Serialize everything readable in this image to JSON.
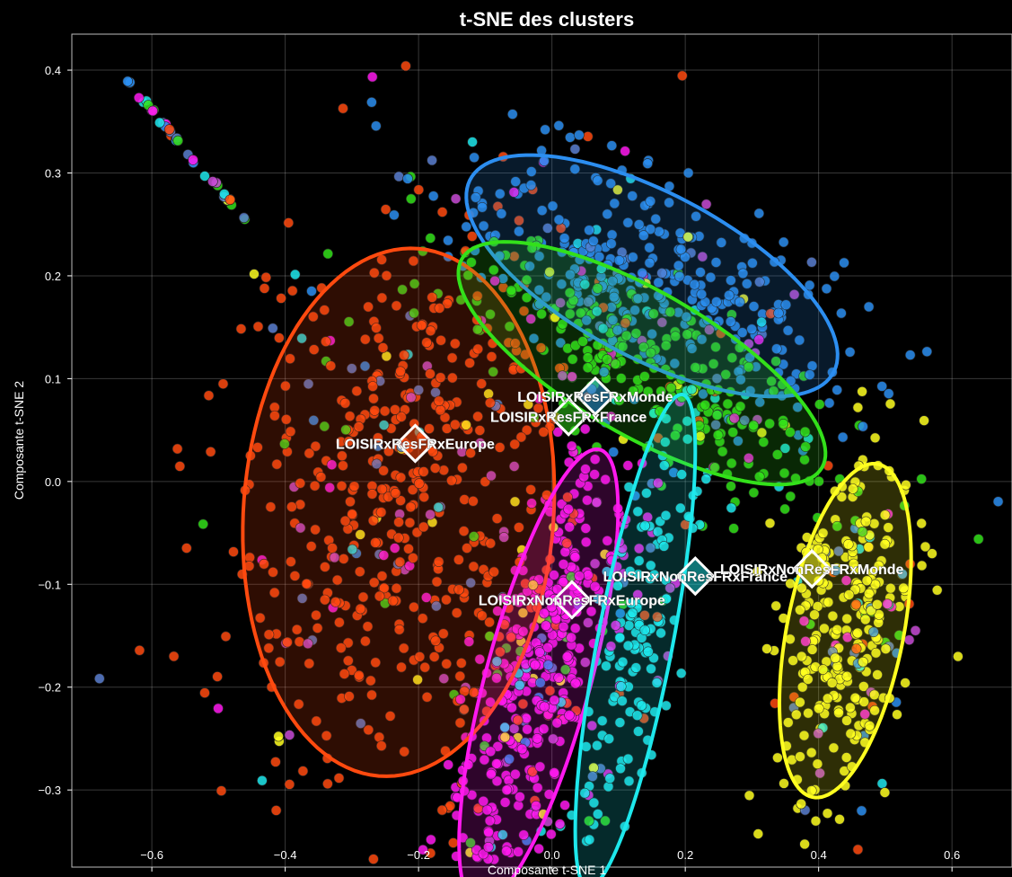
{
  "chart_data": {
    "type": "scatter",
    "title": "t-SNE des clusters",
    "xlabel": "Composante t-SNE 1",
    "ylabel": "Composante t-SNE 2",
    "xlim": [
      -0.72,
      0.69
    ],
    "ylim": [
      -0.375,
      0.435
    ],
    "xticks": [
      -0.6,
      -0.4,
      -0.2,
      0.0,
      0.2,
      0.4,
      0.6
    ],
    "yticks": [
      -0.3,
      -0.2,
      -0.1,
      0.0,
      0.1,
      0.2,
      0.3,
      0.4
    ],
    "xtick_labels": [
      "−0.6",
      "−0.4",
      "−0.2",
      "0.0",
      "0.2",
      "0.4",
      "0.6"
    ],
    "ytick_labels": [
      "−0.3",
      "−0.2",
      "−0.1",
      "0.0",
      "0.1",
      "0.2",
      "0.3",
      "0.4"
    ],
    "grid": true,
    "background": "#000000",
    "clusters": [
      {
        "label": "LOISIRxResFRxEurope",
        "color": "#ff4a0f",
        "centroid": [
          -0.205,
          0.037
        ],
        "ellipse": {
          "cx": -0.23,
          "cy": -0.03,
          "rx": 0.26,
          "ry": 0.23,
          "angle": 70
        }
      },
      {
        "label": "LOISIRxResFRxMonde",
        "color": "#2c8ef0",
        "centroid": [
          0.065,
          0.083
        ],
        "ellipse": {
          "cx": 0.15,
          "cy": 0.2,
          "rx": 0.29,
          "ry": 0.085,
          "angle": -17
        }
      },
      {
        "label": "LOISIRxResFRxFrance",
        "color": "#33e01a",
        "centroid": [
          0.025,
          0.063
        ],
        "ellipse": {
          "cx": 0.135,
          "cy": 0.115,
          "rx": 0.29,
          "ry": 0.075,
          "angle": -19
        }
      },
      {
        "label": "LOISIRxNonResFRxEurope",
        "color": "#ff19ee",
        "centroid": [
          0.03,
          -0.115
        ],
        "ellipse": {
          "cx": -0.02,
          "cy": -0.19,
          "rx": 0.24,
          "ry": 0.075,
          "angle": 66
        }
      },
      {
        "label": "LOISIRxNonResFRxFrance",
        "color": "#1ee8ec",
        "centroid": [
          0.215,
          -0.092
        ],
        "ellipse": {
          "cx": 0.125,
          "cy": -0.155,
          "rx": 0.25,
          "ry": 0.055,
          "angle": 73
        }
      },
      {
        "label": "LOISIRxNonResFRxMonde",
        "color": "#ffff20",
        "centroid": [
          0.39,
          -0.085
        ],
        "ellipse": {
          "cx": 0.44,
          "cy": -0.145,
          "rx": 0.17,
          "ry": 0.085,
          "angle": 70
        }
      }
    ]
  }
}
